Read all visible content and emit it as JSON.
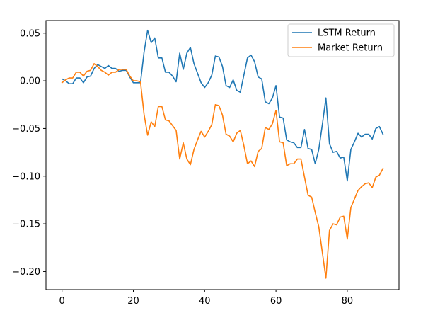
{
  "chart_data": {
    "type": "line",
    "title": "",
    "xlabel": "",
    "ylabel": "",
    "xlim": [
      -4.5,
      94.5
    ],
    "ylim": [
      -0.219,
      0.0632
    ],
    "xticks": [
      0,
      20,
      40,
      60,
      80
    ],
    "xtick_labels": [
      "0",
      "20",
      "40",
      "60",
      "80"
    ],
    "yticks": [
      0.05,
      0.0,
      -0.05,
      -0.1,
      -0.15,
      -0.2
    ],
    "ytick_labels": [
      "0.05",
      "0.00",
      "−0.05",
      "−0.10",
      "−0.15",
      "−0.20"
    ],
    "grid": false,
    "legend_position": "top-right",
    "x": [
      0,
      1,
      2,
      3,
      4,
      5,
      6,
      7,
      8,
      9,
      10,
      11,
      12,
      13,
      14,
      15,
      16,
      17,
      18,
      19,
      20,
      21,
      22,
      23,
      24,
      25,
      26,
      27,
      28,
      29,
      30,
      31,
      32,
      33,
      34,
      35,
      36,
      37,
      38,
      39,
      40,
      41,
      42,
      43,
      44,
      45,
      46,
      47,
      48,
      49,
      50,
      51,
      52,
      53,
      54,
      55,
      56,
      57,
      58,
      59,
      60,
      61,
      62,
      63,
      64,
      65,
      66,
      67,
      68,
      69,
      70,
      71,
      72,
      73,
      74,
      75,
      76,
      77,
      78,
      79,
      80,
      81,
      82,
      83,
      84,
      85,
      86,
      87,
      88,
      89,
      90
    ],
    "series": [
      {
        "name": "LSTM Return",
        "color": "#1f77b4",
        "values": [
          0.002,
          0.0,
          -0.003,
          -0.003,
          0.003,
          0.003,
          -0.002,
          0.004,
          0.005,
          0.013,
          0.017,
          0.015,
          0.013,
          0.016,
          0.013,
          0.013,
          0.01,
          0.011,
          0.011,
          0.004,
          -0.002,
          -0.002,
          -0.002,
          0.03,
          0.053,
          0.04,
          0.045,
          0.024,
          0.024,
          0.009,
          0.009,
          0.005,
          -0.001,
          0.029,
          0.012,
          0.029,
          0.035,
          0.018,
          0.008,
          -0.002,
          -0.007,
          -0.002,
          0.006,
          0.026,
          0.025,
          0.015,
          -0.005,
          -0.007,
          0.001,
          -0.01,
          -0.012,
          0.006,
          0.024,
          0.027,
          0.02,
          0.004,
          0.002,
          -0.022,
          -0.024,
          -0.018,
          -0.005,
          -0.038,
          -0.039,
          -0.062,
          -0.064,
          -0.065,
          -0.07,
          -0.07,
          -0.051,
          -0.071,
          -0.072,
          -0.087,
          -0.072,
          -0.046,
          -0.018,
          -0.066,
          -0.075,
          -0.074,
          -0.081,
          -0.08,
          -0.105,
          -0.072,
          -0.064,
          -0.055,
          -0.059,
          -0.056,
          -0.056,
          -0.061,
          -0.05,
          -0.048,
          -0.056
        ]
      },
      {
        "name": "Market Return",
        "color": "#ff7f0e",
        "values": [
          -0.002,
          0.001,
          0.003,
          0.003,
          0.009,
          0.009,
          0.005,
          0.01,
          0.011,
          0.018,
          0.015,
          0.011,
          0.009,
          0.006,
          0.009,
          0.009,
          0.012,
          0.012,
          0.012,
          0.005,
          0.0,
          0.0,
          -0.001,
          -0.035,
          -0.057,
          -0.043,
          -0.048,
          -0.027,
          -0.027,
          -0.041,
          -0.042,
          -0.047,
          -0.052,
          -0.082,
          -0.065,
          -0.082,
          -0.088,
          -0.072,
          -0.062,
          -0.053,
          -0.059,
          -0.053,
          -0.046,
          -0.025,
          -0.026,
          -0.036,
          -0.056,
          -0.058,
          -0.064,
          -0.055,
          -0.052,
          -0.068,
          -0.087,
          -0.084,
          -0.09,
          -0.074,
          -0.071,
          -0.049,
          -0.051,
          -0.045,
          -0.031,
          -0.064,
          -0.065,
          -0.089,
          -0.087,
          -0.087,
          -0.082,
          -0.082,
          -0.101,
          -0.12,
          -0.122,
          -0.138,
          -0.153,
          -0.18,
          -0.207,
          -0.157,
          -0.15,
          -0.151,
          -0.143,
          -0.142,
          -0.166,
          -0.133,
          -0.124,
          -0.115,
          -0.111,
          -0.108,
          -0.107,
          -0.112,
          -0.101,
          -0.099,
          -0.092
        ]
      }
    ]
  }
}
